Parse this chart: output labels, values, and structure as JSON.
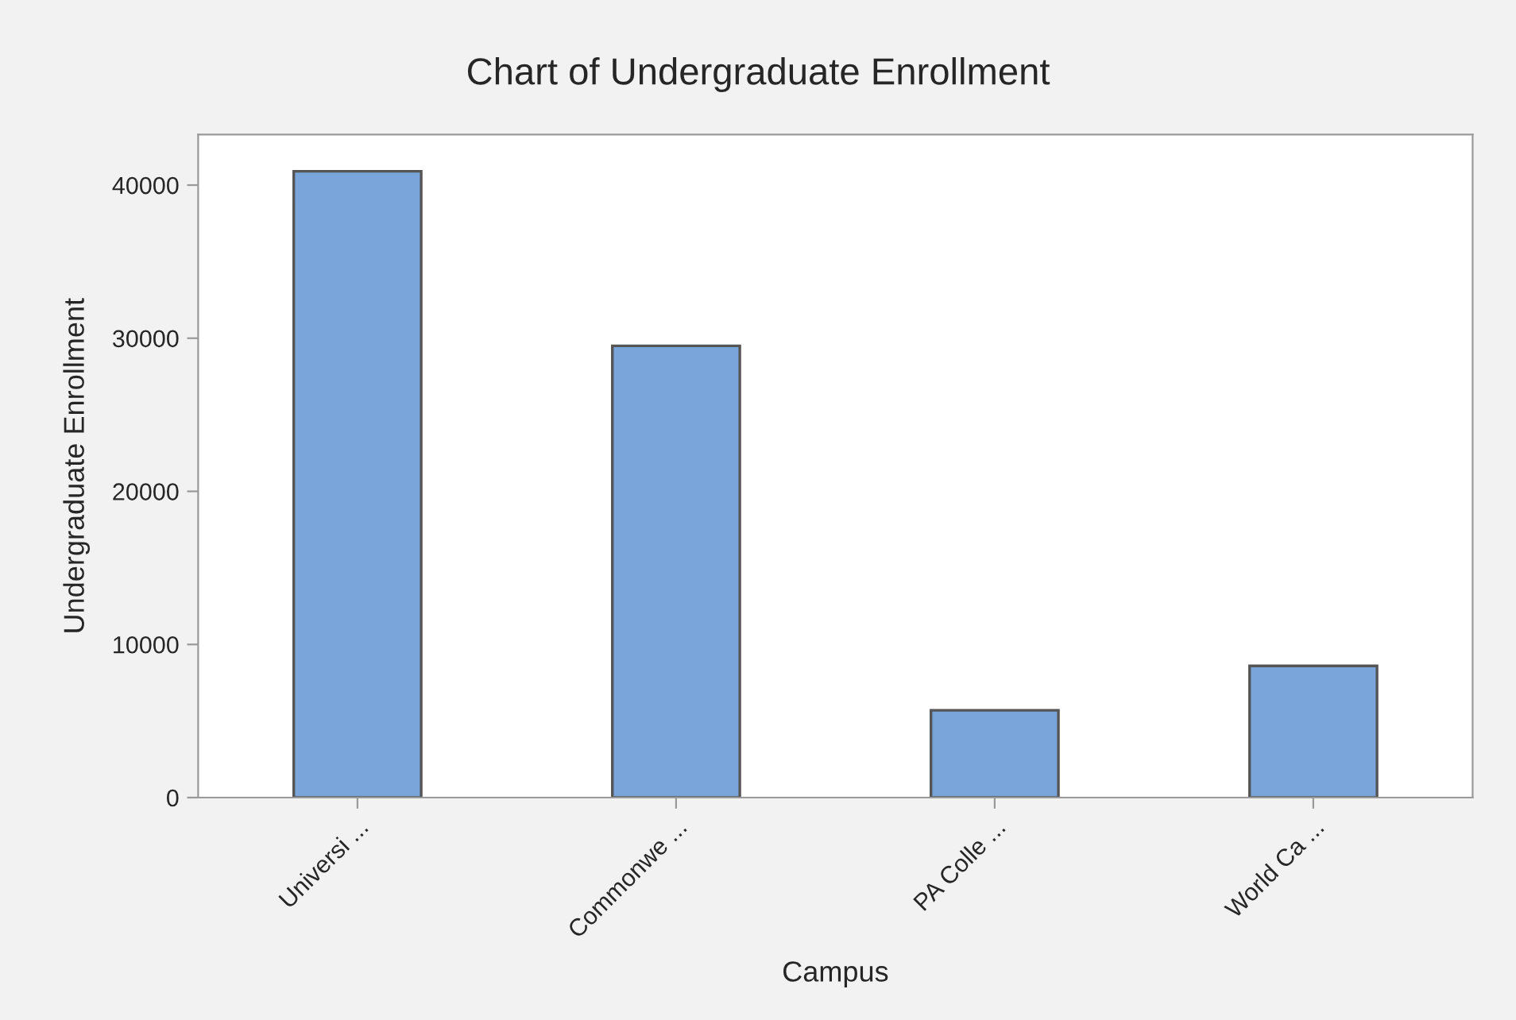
{
  "chart_data": {
    "type": "bar",
    "title": "Chart of Undergraduate Enrollment",
    "xlabel": "Campus",
    "ylabel": "Undergraduate Enrollment",
    "categories": [
      "Universi ...",
      "Commonwe ...",
      "PA Colle ...",
      "World Ca ..."
    ],
    "values": [
      40900,
      29500,
      5700,
      8600
    ],
    "color": "#7aa5da",
    "ylim": [
      0,
      43300
    ],
    "yticks": [
      0,
      10000,
      20000,
      30000,
      40000
    ],
    "grid": false,
    "legend": false
  }
}
